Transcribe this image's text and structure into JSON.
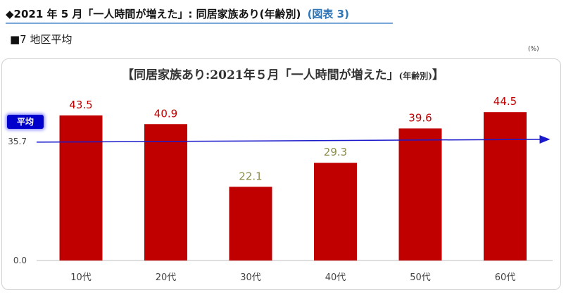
{
  "header": {
    "title": "◆2021 年 5 月「一人時間が増えた」: 同居家族あり(年齢別)",
    "figure_ref": "(図表 3)"
  },
  "subheader": {
    "region": "■7 地区平均",
    "unit": "(%)"
  },
  "average_badge": "平均",
  "colors": {
    "bar": "#c00000",
    "label_high": "#c00000",
    "label_low": "#8c8d4a",
    "average_line": "#1a1acc",
    "badge": "#0000cc",
    "heading_rule": "#7aa7d9",
    "figure_ref": "#2e75b6"
  },
  "chart_data": {
    "type": "bar",
    "title": "【同居家族あり:2021年５月「一人時間が増えた」",
    "title_suffix": "(年齢別)",
    "title_end": "】",
    "categories": [
      "10代",
      "20代",
      "30代",
      "40代",
      "50代",
      "60代"
    ],
    "values": [
      43.5,
      40.9,
      22.1,
      29.3,
      39.6,
      44.5
    ],
    "value_labels": [
      "43.5",
      "40.9",
      "22.1",
      "29.3",
      "39.6",
      "44.5"
    ],
    "below_average_label_color": "olive",
    "average": 35.7,
    "yticks": [
      "0.0",
      "35.7"
    ],
    "ylim": [
      0,
      47.5
    ],
    "grid": false,
    "legend": false
  }
}
